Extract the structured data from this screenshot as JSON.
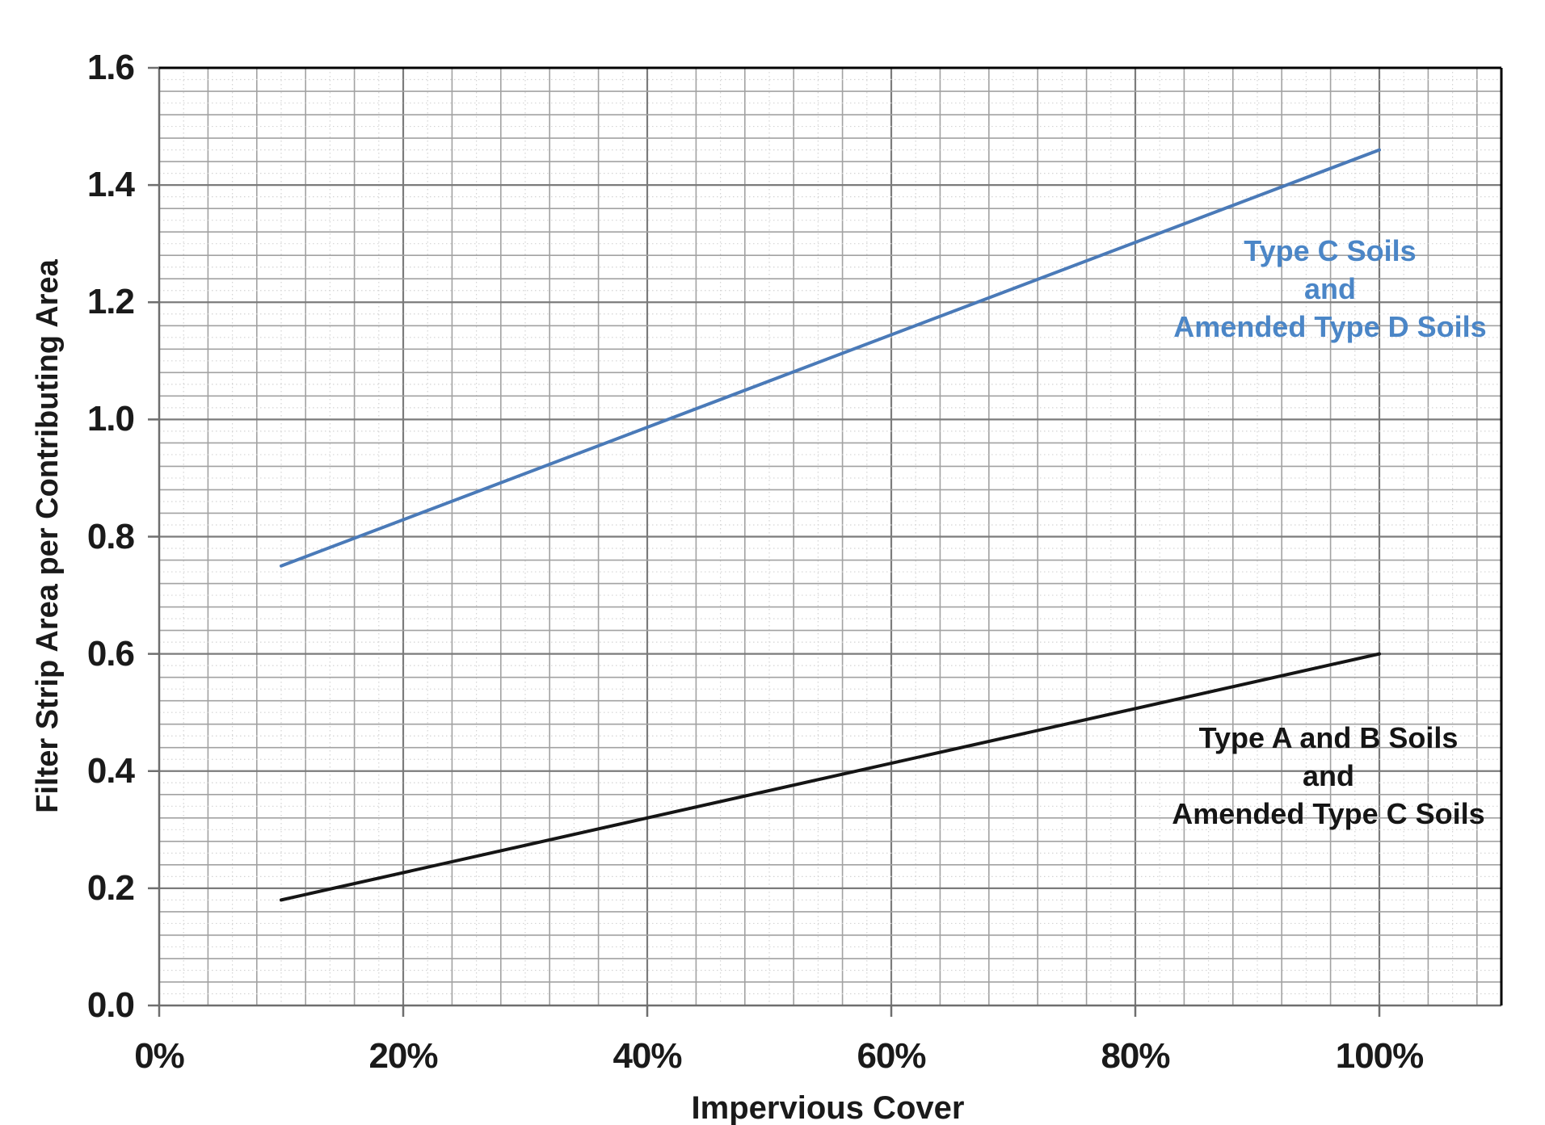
{
  "chart_data": {
    "type": "line",
    "xlabel": "Impervious Cover (%)",
    "ylabel": "Filter Strip Area per Contributing Area",
    "x_axis": {
      "min": 0,
      "max": 110,
      "major_unit": 20,
      "minor_unit": 4,
      "sub_minor_unit": 2,
      "tick_values": [
        0,
        20,
        40,
        60,
        80,
        100
      ],
      "tick_labels": [
        "0%",
        "20%",
        "40%",
        "60%",
        "80%",
        "100%"
      ]
    },
    "y_axis": {
      "min": 0,
      "max": 1.6,
      "major_unit": 0.2,
      "minor_unit": 0.04,
      "sub_minor_unit": 0.02,
      "tick_values": [
        0,
        0.2,
        0.4,
        0.6,
        0.8,
        1.0,
        1.2,
        1.4,
        1.6
      ],
      "tick_labels": [
        "0.0",
        "0.2",
        "0.4",
        "0.6",
        "0.8",
        "1.0",
        "1.2",
        "1.4",
        "1.6"
      ]
    },
    "grid": {
      "major": true,
      "minor": true,
      "sub_minor_dotted": true
    },
    "legend_position": "inline-annotations",
    "series": [
      {
        "name": "Type C Soils and Amended Type D Soils",
        "color": "#4a7ab8",
        "label_color": "#4b86c7",
        "x": [
          10,
          100
        ],
        "y": [
          0.75,
          1.46
        ],
        "annotation_lines": [
          "Type C Soils",
          "and",
          "Amended Type D Soils"
        ]
      },
      {
        "name": "Type A and B Soils and Amended Type C Soils",
        "color": "#151515",
        "label_color": "#151515",
        "x": [
          10,
          100
        ],
        "y": [
          0.18,
          0.6
        ],
        "annotation_lines": [
          "Type A and B Soils",
          "and",
          "Amended Type C Soils"
        ]
      }
    ]
  },
  "colors": {
    "background": "#ffffff",
    "major_grid": "#7b7b7b",
    "minor_grid": "#a2a2a2",
    "sub_minor_grid": "#d4d4d4",
    "axis_line": "#6e6e6e",
    "plot_border": "#000000",
    "text": "#1a1a1a"
  }
}
